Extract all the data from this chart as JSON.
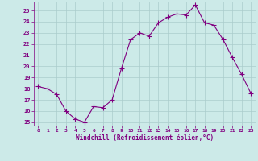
{
  "x": [
    0,
    1,
    2,
    3,
    4,
    5,
    6,
    7,
    8,
    9,
    10,
    11,
    12,
    13,
    14,
    15,
    16,
    17,
    18,
    19,
    20,
    21,
    22,
    23
  ],
  "y": [
    18.2,
    18.0,
    17.5,
    16.0,
    15.3,
    15.0,
    16.4,
    16.3,
    17.0,
    19.8,
    22.4,
    23.0,
    22.7,
    23.9,
    24.4,
    24.7,
    24.6,
    25.5,
    23.9,
    23.7,
    22.4,
    20.8,
    19.3,
    17.6
  ],
  "line_color": "#800080",
  "marker": "D",
  "marker_size": 2.0,
  "bg_color": "#cceae8",
  "grid_color": "#aacccc",
  "xlabel": "Windchill (Refroidissement éolien,°C)",
  "xlabel_color": "#800080",
  "tick_color": "#800080",
  "ylim": [
    14.7,
    25.8
  ],
  "xlim": [
    -0.5,
    23.5
  ],
  "yticks": [
    15,
    16,
    17,
    18,
    19,
    20,
    21,
    22,
    23,
    24,
    25
  ],
  "xticks": [
    0,
    1,
    2,
    3,
    4,
    5,
    6,
    7,
    8,
    9,
    10,
    11,
    12,
    13,
    14,
    15,
    16,
    17,
    18,
    19,
    20,
    21,
    22,
    23
  ],
  "figsize": [
    3.2,
    2.0
  ],
  "dpi": 100
}
